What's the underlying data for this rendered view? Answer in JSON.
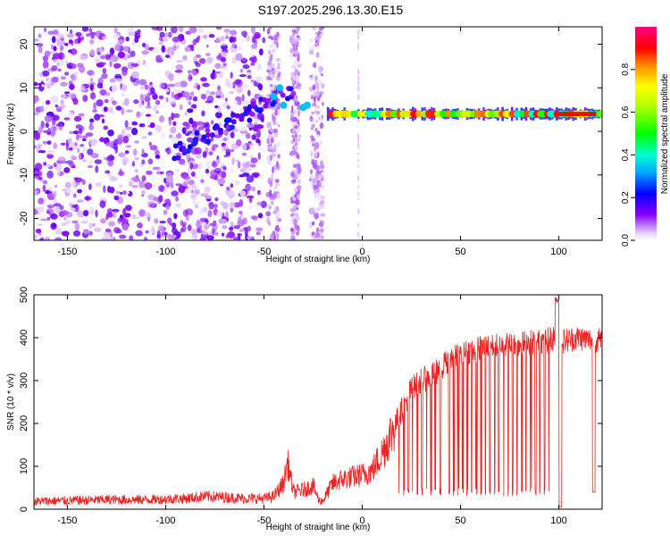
{
  "title": "S197.2025.296.13.30.E15",
  "chart_data": [
    {
      "type": "heatmap",
      "name": "spectrogram",
      "xlabel": "Height of straight line (km)",
      "ylabel": "Frequency (Hz)",
      "xlim": [
        -167,
        122
      ],
      "ylim": [
        -25,
        24
      ],
      "xticks": [
        -150,
        -100,
        -50,
        0,
        50,
        100
      ],
      "yticks": [
        -20,
        -10,
        0,
        10,
        20
      ],
      "colorbar": {
        "label": "Normalized spectral amplitude",
        "range": [
          0,
          1
        ],
        "ticks": [
          0.0,
          0.2,
          0.4,
          0.6,
          0.8
        ]
      },
      "features": [
        {
          "description_kind": "diffuse noise",
          "x_range": [
            -167,
            -50
          ],
          "amplitude": 0.15
        },
        {
          "description_kind": "noise bands",
          "x_range": [
            -48,
            -18
          ],
          "amplitude": 0.12
        },
        {
          "description_kind": "tone line",
          "x_range": [
            -18,
            122
          ],
          "frequency": 4,
          "amplitude": 0.9
        }
      ]
    },
    {
      "type": "line",
      "name": "snr",
      "xlabel": "Height of straight line (km)",
      "ylabel": "SNR (10 * v/v)",
      "xlim": [
        -167,
        122
      ],
      "ylim": [
        0,
        500
      ],
      "xticks": [
        -150,
        -100,
        -50,
        0,
        50,
        100
      ],
      "yticks": [
        0,
        100,
        200,
        300,
        400,
        500
      ],
      "color": "#ee2222",
      "series": [
        {
          "name": "SNR",
          "x": [
            -167,
            -150,
            -130,
            -110,
            -90,
            -80,
            -70,
            -60,
            -50,
            -45,
            -40,
            -38,
            -35,
            -30,
            -25,
            -22,
            -20,
            -15,
            -10,
            -5,
            0,
            5,
            10,
            15,
            20,
            25,
            30,
            35,
            40,
            45,
            50,
            55,
            60,
            65,
            70,
            75,
            80,
            85,
            90,
            95,
            98,
            100,
            105,
            110,
            115,
            120,
            122
          ],
          "y": [
            18,
            20,
            22,
            22,
            25,
            30,
            28,
            25,
            25,
            30,
            60,
            110,
            40,
            45,
            55,
            20,
            20,
            60,
            70,
            75,
            80,
            90,
            130,
            180,
            230,
            280,
            300,
            310,
            330,
            350,
            360,
            370,
            375,
            380,
            380,
            385,
            385,
            390,
            390,
            395,
            400,
            390,
            395,
            400,
            395,
            395,
            390
          ]
        }
      ],
      "dropout_floor": 30
    }
  ]
}
